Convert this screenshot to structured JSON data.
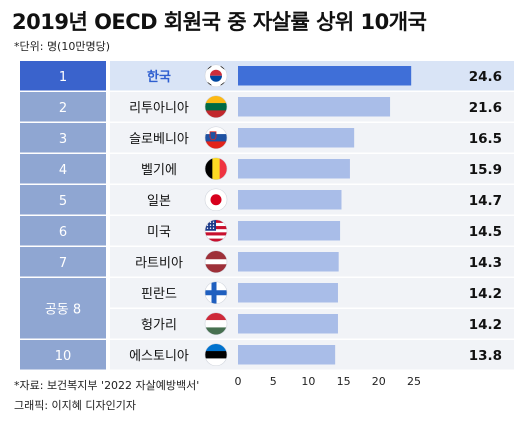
{
  "header": {
    "title": "2019년 OECD 회원국 중 자살률 상위 10개국",
    "unit_note": "*단위: 명(10만명당)"
  },
  "colors": {
    "highlight_rank_bg": "#3a63cc",
    "rank_bg": "#8fa6d2",
    "highlight_row_bg": "#d9e4f6",
    "row_bg": "#f1f3f7",
    "highlight_bar": "#3f6fd8",
    "bar": "#a9bde8",
    "highlight_text": "#2f5fd0"
  },
  "chart_data": {
    "type": "bar",
    "orientation": "horizontal",
    "title": "2019년 OECD 회원국 중 자살률 상위 10개국",
    "ranks": [
      "1",
      "2",
      "3",
      "4",
      "5",
      "6",
      "7",
      "공동 8",
      "",
      "10"
    ],
    "categories": [
      "한국",
      "리투아니아",
      "슬로베니아",
      "벨기에",
      "일본",
      "미국",
      "라트비아",
      "핀란드",
      "헝가리",
      "에스토니아"
    ],
    "flag_icons": [
      "korea-flag-icon",
      "lithuania-flag-icon",
      "slovenia-flag-icon",
      "belgium-flag-icon",
      "japan-flag-icon",
      "usa-flag-icon",
      "latvia-flag-icon",
      "finland-flag-icon",
      "hungary-flag-icon",
      "estonia-flag-icon"
    ],
    "values": [
      24.6,
      21.6,
      16.5,
      15.9,
      14.7,
      14.5,
      14.3,
      14.2,
      14.2,
      13.8
    ],
    "value_labels": [
      "24.6",
      "21.6",
      "16.5",
      "15.9",
      "14.7",
      "14.5",
      "14.3",
      "14.2",
      "14.2",
      "13.8"
    ],
    "highlight_index": 0,
    "xlim": [
      0,
      25
    ],
    "xticks": [
      "0",
      "5",
      "10",
      "15",
      "20",
      "25"
    ]
  },
  "footer": {
    "source": "*자료: 보건복지부 '2022 자살예방백서'",
    "credit": "그래픽: 이지혜 디자인기자"
  }
}
